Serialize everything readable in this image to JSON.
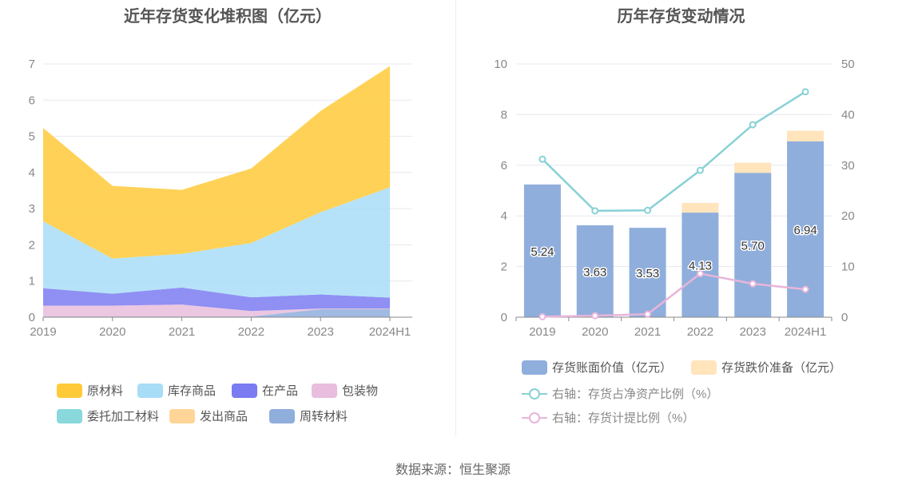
{
  "footer": {
    "source": "数据来源：恒生聚源"
  },
  "colors": {
    "原材料": "#FFCA3A",
    "库存商品": "#A8DDF7",
    "在产品": "#7B7BF2",
    "包装物": "#E8BDDD",
    "委托加工材料": "#88D8DC",
    "发出商品": "#FFD597",
    "周转材料": "#8FAEDC",
    "bar_value": "#8FAEDC",
    "bar_provision": "#FFE4BC",
    "line_net_asset": "#88D1D6",
    "line_provision": "#E8B5DA",
    "grid": "#E6E8F0"
  },
  "chart_data": [
    {
      "type": "area",
      "stacked": true,
      "title": "近年存货变化堆积图（亿元）",
      "categories": [
        "2019",
        "2020",
        "2021",
        "2022",
        "2023",
        "2024H1"
      ],
      "ylim": [
        0,
        7
      ],
      "yticks": [
        "0",
        "1",
        "2",
        "3",
        "4",
        "5",
        "6",
        "7"
      ],
      "series": [
        {
          "name": "周转材料",
          "values": [
            0.02,
            0.02,
            0.02,
            0.02,
            0.22,
            0.22
          ]
        },
        {
          "name": "包装物",
          "values": [
            0.3,
            0.3,
            0.33,
            0.15,
            0.02,
            0.02
          ]
        },
        {
          "name": "委托加工材料",
          "values": [
            0.0,
            0.0,
            0.0,
            0.0,
            0.0,
            0.0
          ]
        },
        {
          "name": "发出商品",
          "values": [
            0.0,
            0.0,
            0.0,
            0.0,
            0.0,
            0.0
          ]
        },
        {
          "name": "在产品",
          "values": [
            0.48,
            0.33,
            0.47,
            0.38,
            0.39,
            0.3
          ]
        },
        {
          "name": "库存商品",
          "values": [
            1.85,
            0.97,
            0.93,
            1.5,
            2.27,
            3.05
          ]
        },
        {
          "name": "原材料",
          "values": [
            2.58,
            2.01,
            1.77,
            2.06,
            2.8,
            3.35
          ]
        }
      ],
      "legend": [
        "原材料",
        "库存商品",
        "在产品",
        "包装物",
        "委托加工材料",
        "发出商品",
        "周转材料"
      ]
    },
    {
      "type": "bar",
      "stacked": true,
      "title": "历年存货变动情况",
      "categories": [
        "2019",
        "2020",
        "2021",
        "2022",
        "2023",
        "2024H1"
      ],
      "ylim": [
        0,
        10
      ],
      "yticks": [
        "0",
        "2",
        "4",
        "6",
        "8",
        "10"
      ],
      "y2lim": [
        0,
        50
      ],
      "y2ticks": [
        "0",
        "10",
        "20",
        "30",
        "40",
        "50"
      ],
      "series": [
        {
          "name": "存货账面价值（亿元）",
          "values": [
            5.24,
            3.63,
            3.53,
            4.13,
            5.7,
            6.94
          ],
          "labels": [
            "5.24",
            "3.63",
            "3.53",
            "4.13",
            "5.70",
            "6.94"
          ]
        },
        {
          "name": "存货跌价准备（亿元）",
          "values": [
            0.0,
            0.0,
            0.0,
            0.38,
            0.4,
            0.42
          ]
        }
      ],
      "lines": [
        {
          "name": "右轴：存货占净资产比例（%）",
          "axis": "right",
          "values": [
            31.2,
            21.0,
            21.1,
            29.0,
            38.0,
            44.5
          ]
        },
        {
          "name": "右轴：存货计提比例（%）",
          "axis": "right",
          "values": [
            0.1,
            0.3,
            0.6,
            8.6,
            6.6,
            5.5
          ]
        }
      ]
    }
  ]
}
